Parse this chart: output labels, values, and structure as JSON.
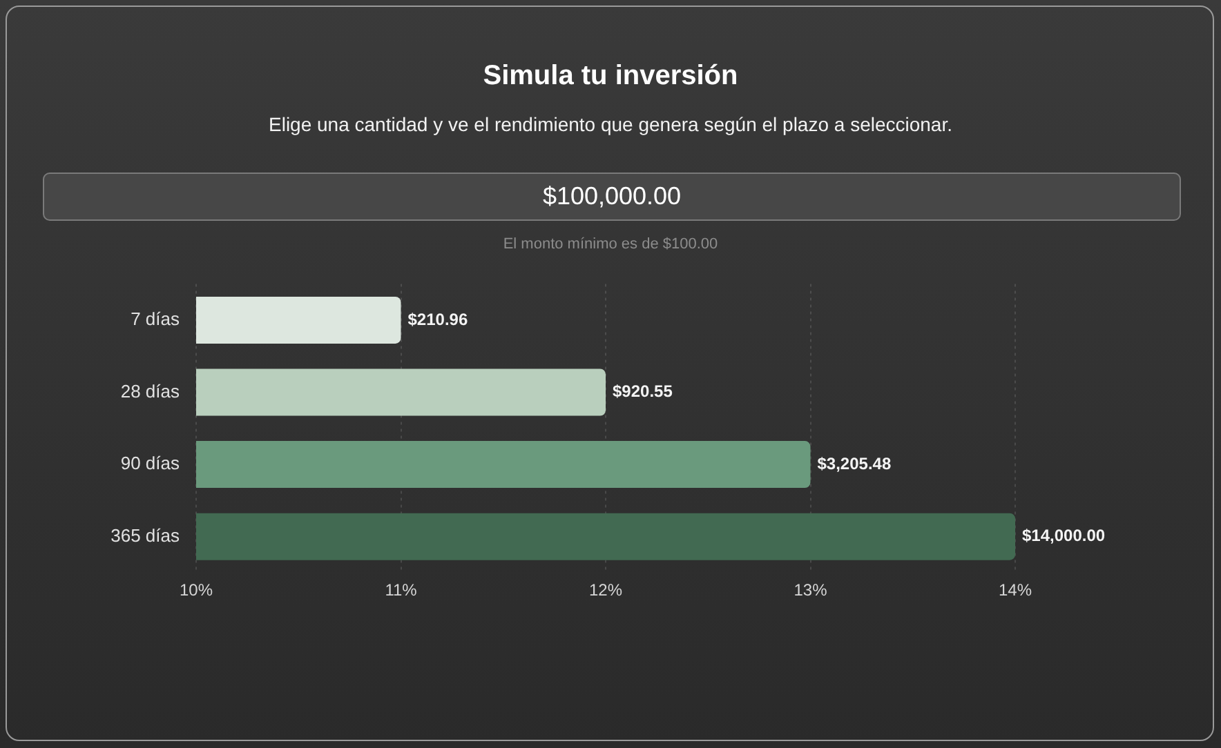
{
  "chart_data": {
    "type": "bar",
    "orientation": "horizontal",
    "title": "Simula tu inversión",
    "subtitle": "Elige una cantidad y ve el rendimiento que genera según el plazo a seleccionar.",
    "annotations": [
      "$100,000.00",
      "El monto mínimo es de $100.00",
      {
        "text": "$210.96",
        "x": 11,
        "y": "7 días"
      },
      {
        "text": "$920.55",
        "x": 12,
        "y": "28 días"
      },
      {
        "text": "$3,205.48",
        "x": 13,
        "y": "90 días"
      },
      {
        "text": "$14,000.00",
        "x": 14,
        "y": "365 días"
      }
    ],
    "categories": [
      "7 días",
      "28 días",
      "90 días",
      "365 días"
    ],
    "values": [
      11,
      12,
      13,
      14
    ],
    "colors": [
      "#dde7df",
      "#b9cfbd",
      "#6a9a7d",
      "#426a52"
    ],
    "xlim": [
      10,
      14
    ],
    "xticks": [
      {
        "value": 10,
        "label": "10%"
      },
      {
        "value": 11,
        "label": "11%"
      },
      {
        "value": 12,
        "label": "12%"
      },
      {
        "value": 13,
        "label": "13%"
      },
      {
        "value": 14,
        "label": "14%"
      }
    ],
    "grid": "x",
    "legend": false
  }
}
